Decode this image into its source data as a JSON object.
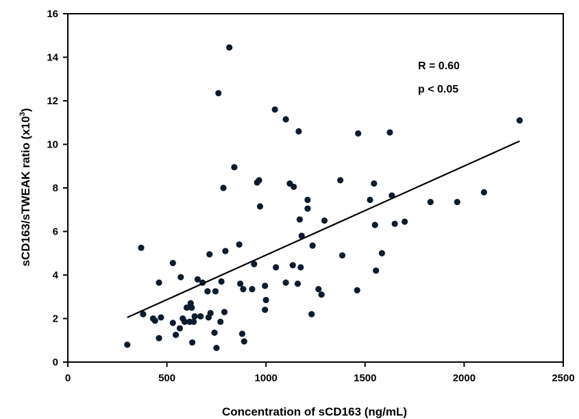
{
  "chart_data": {
    "type": "scatter",
    "xlabel": "Concentration of sCD163 (ng/mL)",
    "ylabel_main": "sCD163/sTWEAK ratio (x10",
    "ylabel_sup": "3",
    "ylabel_end": ")",
    "xlim": [
      0,
      2500
    ],
    "ylim": [
      0,
      16
    ],
    "x_ticks": [
      0,
      500,
      1000,
      1500,
      2000,
      2500
    ],
    "y_ticks": [
      0,
      2,
      4,
      6,
      8,
      10,
      12,
      14,
      16
    ],
    "point_color": "#0d1b2e",
    "annotations": [
      "R = 0.60",
      "p < 0.05"
    ],
    "trendline": {
      "x": [
        300,
        2280
      ],
      "y": [
        2.05,
        10.15
      ]
    },
    "points": [
      [
        300,
        0.8
      ],
      [
        370,
        5.25
      ],
      [
        380,
        2.2
      ],
      [
        430,
        2.0
      ],
      [
        440,
        1.9
      ],
      [
        460,
        3.65
      ],
      [
        460,
        1.1
      ],
      [
        470,
        2.05
      ],
      [
        530,
        4.55
      ],
      [
        530,
        1.8
      ],
      [
        545,
        1.25
      ],
      [
        565,
        1.55
      ],
      [
        570,
        3.9
      ],
      [
        580,
        2.0
      ],
      [
        590,
        1.85
      ],
      [
        600,
        2.5
      ],
      [
        615,
        1.85
      ],
      [
        620,
        2.7
      ],
      [
        625,
        2.5
      ],
      [
        628,
        0.9
      ],
      [
        635,
        1.85
      ],
      [
        640,
        2.1
      ],
      [
        655,
        3.8
      ],
      [
        670,
        2.1
      ],
      [
        680,
        3.65
      ],
      [
        705,
        3.25
      ],
      [
        710,
        2.05
      ],
      [
        715,
        4.95
      ],
      [
        720,
        2.25
      ],
      [
        740,
        1.35
      ],
      [
        745,
        3.25
      ],
      [
        750,
        0.65
      ],
      [
        760,
        12.35
      ],
      [
        770,
        1.85
      ],
      [
        775,
        3.7
      ],
      [
        785,
        8.0
      ],
      [
        790,
        2.3
      ],
      [
        795,
        5.1
      ],
      [
        815,
        14.45
      ],
      [
        840,
        8.95
      ],
      [
        865,
        5.4
      ],
      [
        870,
        3.6
      ],
      [
        880,
        1.3
      ],
      [
        885,
        3.35
      ],
      [
        890,
        0.95
      ],
      [
        930,
        3.35
      ],
      [
        940,
        4.5
      ],
      [
        955,
        8.25
      ],
      [
        965,
        8.35
      ],
      [
        970,
        7.15
      ],
      [
        995,
        2.4
      ],
      [
        995,
        3.5
      ],
      [
        1000,
        2.85
      ],
      [
        1045,
        11.6
      ],
      [
        1050,
        4.35
      ],
      [
        1100,
        11.15
      ],
      [
        1100,
        3.65
      ],
      [
        1120,
        8.2
      ],
      [
        1135,
        4.45
      ],
      [
        1140,
        8.05
      ],
      [
        1160,
        3.6
      ],
      [
        1165,
        10.6
      ],
      [
        1170,
        6.55
      ],
      [
        1175,
        4.35
      ],
      [
        1180,
        5.8
      ],
      [
        1210,
        7.45
      ],
      [
        1210,
        7.05
      ],
      [
        1230,
        2.2
      ],
      [
        1235,
        5.35
      ],
      [
        1265,
        3.35
      ],
      [
        1280,
        3.1
      ],
      [
        1295,
        6.5
      ],
      [
        1375,
        8.35
      ],
      [
        1385,
        4.9
      ],
      [
        1460,
        3.3
      ],
      [
        1465,
        10.5
      ],
      [
        1525,
        7.45
      ],
      [
        1545,
        8.2
      ],
      [
        1550,
        6.3
      ],
      [
        1555,
        4.2
      ],
      [
        1585,
        5.0
      ],
      [
        1625,
        10.55
      ],
      [
        1635,
        7.65
      ],
      [
        1650,
        6.35
      ],
      [
        1700,
        6.45
      ],
      [
        1830,
        7.35
      ],
      [
        1965,
        7.35
      ],
      [
        2100,
        7.8
      ],
      [
        2280,
        11.1
      ]
    ]
  }
}
